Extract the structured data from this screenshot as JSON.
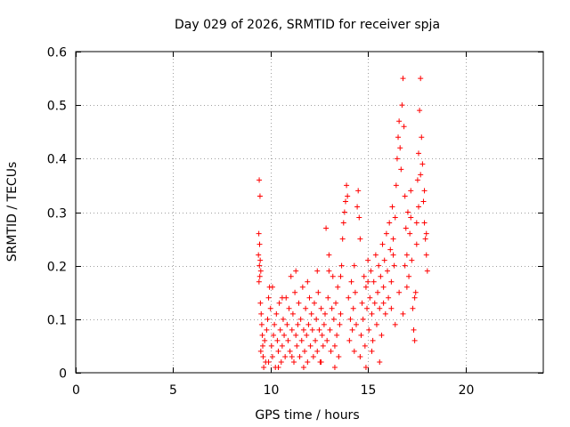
{
  "chart_data": {
    "type": "scatter",
    "title": "Day 029 of 2026, SRMTID for receiver spja",
    "xlabel": "GPS time / hours",
    "ylabel": "SRMTID / TECUs",
    "xlim": [
      0,
      24
    ],
    "ylim": [
      0,
      0.6
    ],
    "xticks": [
      0,
      5,
      10,
      15,
      20
    ],
    "yticks": [
      0,
      0.1,
      0.2,
      0.3,
      0.4,
      0.5,
      0.6
    ],
    "xtick_labels": [
      "0",
      "5",
      "10",
      "15",
      "20"
    ],
    "ytick_labels": [
      "0",
      "0.1",
      "0.2",
      "0.3",
      "0.4",
      "0.5",
      "0.6"
    ],
    "grid": true,
    "marker": "+",
    "color": "#ff0000",
    "series": [
      {
        "name": "SRMTID",
        "points": [
          [
            9.42,
            0.36
          ],
          [
            9.46,
            0.33
          ],
          [
            9.4,
            0.26
          ],
          [
            9.44,
            0.24
          ],
          [
            9.38,
            0.22
          ],
          [
            9.47,
            0.21
          ],
          [
            9.43,
            0.2
          ],
          [
            9.5,
            0.19
          ],
          [
            9.45,
            0.18
          ],
          [
            9.41,
            0.17
          ],
          [
            9.48,
            0.13
          ],
          [
            9.52,
            0.11
          ],
          [
            9.55,
            0.09
          ],
          [
            9.58,
            0.07
          ],
          [
            9.6,
            0.05
          ],
          [
            9.62,
            0.03
          ],
          [
            9.65,
            0.01
          ],
          [
            9.5,
            0.04
          ],
          [
            9.7,
            0.06
          ],
          [
            9.75,
            0.02
          ],
          [
            9.8,
            0.08
          ],
          [
            9.85,
            0.1
          ],
          [
            9.9,
            0.14
          ],
          [
            9.95,
            0.16
          ],
          [
            10.0,
            0.12
          ],
          [
            10.05,
            0.05
          ],
          [
            10.1,
            0.03
          ],
          [
            10.15,
            0.07
          ],
          [
            10.2,
            0.09
          ],
          [
            10.25,
            0.01
          ],
          [
            10.3,
            0.11
          ],
          [
            10.35,
            0.06
          ],
          [
            10.4,
            0.04
          ],
          [
            10.45,
            0.13
          ],
          [
            10.5,
            0.08
          ],
          [
            10.55,
            0.02
          ],
          [
            10.6,
            0.05
          ],
          [
            10.65,
            0.1
          ],
          [
            10.7,
            0.07
          ],
          [
            10.75,
            0.03
          ],
          [
            10.8,
            0.14
          ],
          [
            10.85,
            0.09
          ],
          [
            10.9,
            0.06
          ],
          [
            10.95,
            0.12
          ],
          [
            11.0,
            0.04
          ],
          [
            11.05,
            0.18
          ],
          [
            11.1,
            0.08
          ],
          [
            11.15,
            0.11
          ],
          [
            11.2,
            0.02
          ],
          [
            11.25,
            0.15
          ],
          [
            11.3,
            0.07
          ],
          [
            11.35,
            0.05
          ],
          [
            11.4,
            0.09
          ],
          [
            11.45,
            0.13
          ],
          [
            11.5,
            0.03
          ],
          [
            11.55,
            0.1
          ],
          [
            11.6,
            0.06
          ],
          [
            11.65,
            0.16
          ],
          [
            11.7,
            0.08
          ],
          [
            11.75,
            0.04
          ],
          [
            11.8,
            0.12
          ],
          [
            11.85,
            0.07
          ],
          [
            11.9,
            0.02
          ],
          [
            11.95,
            0.09
          ],
          [
            12.0,
            0.14
          ],
          [
            12.05,
            0.05
          ],
          [
            12.1,
            0.11
          ],
          [
            12.15,
            0.08
          ],
          [
            12.2,
            0.03
          ],
          [
            12.25,
            0.13
          ],
          [
            12.3,
            0.06
          ],
          [
            12.35,
            0.1
          ],
          [
            12.4,
            0.04
          ],
          [
            12.45,
            0.15
          ],
          [
            12.5,
            0.08
          ],
          [
            12.55,
            0.02
          ],
          [
            12.6,
            0.12
          ],
          [
            12.65,
            0.07
          ],
          [
            12.7,
            0.05
          ],
          [
            12.75,
            0.09
          ],
          [
            12.8,
            0.11
          ],
          [
            12.85,
            0.27
          ],
          [
            12.9,
            0.06
          ],
          [
            12.95,
            0.14
          ],
          [
            13.0,
            0.22
          ],
          [
            13.05,
            0.08
          ],
          [
            13.1,
            0.04
          ],
          [
            13.15,
            0.12
          ],
          [
            13.2,
            0.18
          ],
          [
            13.25,
            0.1
          ],
          [
            13.3,
            0.05
          ],
          [
            13.35,
            0.13
          ],
          [
            13.4,
            0.07
          ],
          [
            13.45,
            0.16
          ],
          [
            13.5,
            0.03
          ],
          [
            13.55,
            0.09
          ],
          [
            13.6,
            0.11
          ],
          [
            13.65,
            0.2
          ],
          [
            13.7,
            0.25
          ],
          [
            13.75,
            0.28
          ],
          [
            13.8,
            0.3
          ],
          [
            13.85,
            0.32
          ],
          [
            13.9,
            0.35
          ],
          [
            13.95,
            0.33
          ],
          [
            14.0,
            0.14
          ],
          [
            14.05,
            0.06
          ],
          [
            14.1,
            0.1
          ],
          [
            14.15,
            0.17
          ],
          [
            14.2,
            0.08
          ],
          [
            14.25,
            0.12
          ],
          [
            14.3,
            0.04
          ],
          [
            14.35,
            0.15
          ],
          [
            14.4,
            0.09
          ],
          [
            14.45,
            0.31
          ],
          [
            14.5,
            0.34
          ],
          [
            14.55,
            0.29
          ],
          [
            14.6,
            0.25
          ],
          [
            14.65,
            0.07
          ],
          [
            14.7,
            0.13
          ],
          [
            14.75,
            0.1
          ],
          [
            14.8,
            0.18
          ],
          [
            14.85,
            0.05
          ],
          [
            14.9,
            0.16
          ],
          [
            14.95,
            0.12
          ],
          [
            15.0,
            0.21
          ],
          [
            15.05,
            0.08
          ],
          [
            15.1,
            0.14
          ],
          [
            15.15,
            0.19
          ],
          [
            15.2,
            0.11
          ],
          [
            15.25,
            0.06
          ],
          [
            15.3,
            0.17
          ],
          [
            15.35,
            0.13
          ],
          [
            15.4,
            0.22
          ],
          [
            15.45,
            0.09
          ],
          [
            15.5,
            0.15
          ],
          [
            15.55,
            0.2
          ],
          [
            15.6,
            0.12
          ],
          [
            15.65,
            0.18
          ],
          [
            15.7,
            0.07
          ],
          [
            15.75,
            0.24
          ],
          [
            15.8,
            0.16
          ],
          [
            15.85,
            0.21
          ],
          [
            15.9,
            0.11
          ],
          [
            15.95,
            0.26
          ],
          [
            16.0,
            0.19
          ],
          [
            16.05,
            0.14
          ],
          [
            16.1,
            0.28
          ],
          [
            16.15,
            0.23
          ],
          [
            16.2,
            0.17
          ],
          [
            16.25,
            0.31
          ],
          [
            16.3,
            0.25
          ],
          [
            16.35,
            0.2
          ],
          [
            16.4,
            0.29
          ],
          [
            16.45,
            0.35
          ],
          [
            16.5,
            0.4
          ],
          [
            16.55,
            0.44
          ],
          [
            16.6,
            0.47
          ],
          [
            16.65,
            0.42
          ],
          [
            16.7,
            0.38
          ],
          [
            16.75,
            0.5
          ],
          [
            16.8,
            0.55
          ],
          [
            16.85,
            0.46
          ],
          [
            16.9,
            0.33
          ],
          [
            16.95,
            0.27
          ],
          [
            17.0,
            0.22
          ],
          [
            17.05,
            0.3
          ],
          [
            17.1,
            0.18
          ],
          [
            17.15,
            0.26
          ],
          [
            17.2,
            0.34
          ],
          [
            17.25,
            0.21
          ],
          [
            17.3,
            0.12
          ],
          [
            17.35,
            0.08
          ],
          [
            17.4,
            0.06
          ],
          [
            17.45,
            0.15
          ],
          [
            17.5,
            0.24
          ],
          [
            17.55,
            0.36
          ],
          [
            17.6,
            0.41
          ],
          [
            17.65,
            0.49
          ],
          [
            17.7,
            0.55
          ],
          [
            17.75,
            0.44
          ],
          [
            17.8,
            0.39
          ],
          [
            17.85,
            0.32
          ],
          [
            17.9,
            0.28
          ],
          [
            17.95,
            0.25
          ],
          [
            18.0,
            0.22
          ],
          [
            18.05,
            0.19
          ],
          [
            17.7,
            0.37
          ],
          [
            17.6,
            0.31
          ],
          [
            17.5,
            0.28
          ],
          [
            17.4,
            0.14
          ],
          [
            16.2,
            0.12
          ],
          [
            16.4,
            0.09
          ],
          [
            16.6,
            0.15
          ],
          [
            16.8,
            0.11
          ],
          [
            17.0,
            0.16
          ],
          [
            15.2,
            0.04
          ],
          [
            15.6,
            0.02
          ],
          [
            14.9,
            0.01
          ],
          [
            14.6,
            0.03
          ],
          [
            13.3,
            0.01
          ],
          [
            12.6,
            0.02
          ],
          [
            11.7,
            0.01
          ],
          [
            11.1,
            0.03
          ],
          [
            10.4,
            0.01
          ],
          [
            9.9,
            0.02
          ],
          [
            10.1,
            0.16
          ],
          [
            10.6,
            0.14
          ],
          [
            11.3,
            0.19
          ],
          [
            11.9,
            0.17
          ],
          [
            12.4,
            0.19
          ],
          [
            13.0,
            0.19
          ],
          [
            13.6,
            0.18
          ],
          [
            14.3,
            0.2
          ],
          [
            15.0,
            0.17
          ],
          [
            15.8,
            0.13
          ],
          [
            16.3,
            0.22
          ],
          [
            16.9,
            0.2
          ],
          [
            17.2,
            0.29
          ],
          [
            17.9,
            0.34
          ],
          [
            18.0,
            0.26
          ]
        ]
      }
    ]
  }
}
